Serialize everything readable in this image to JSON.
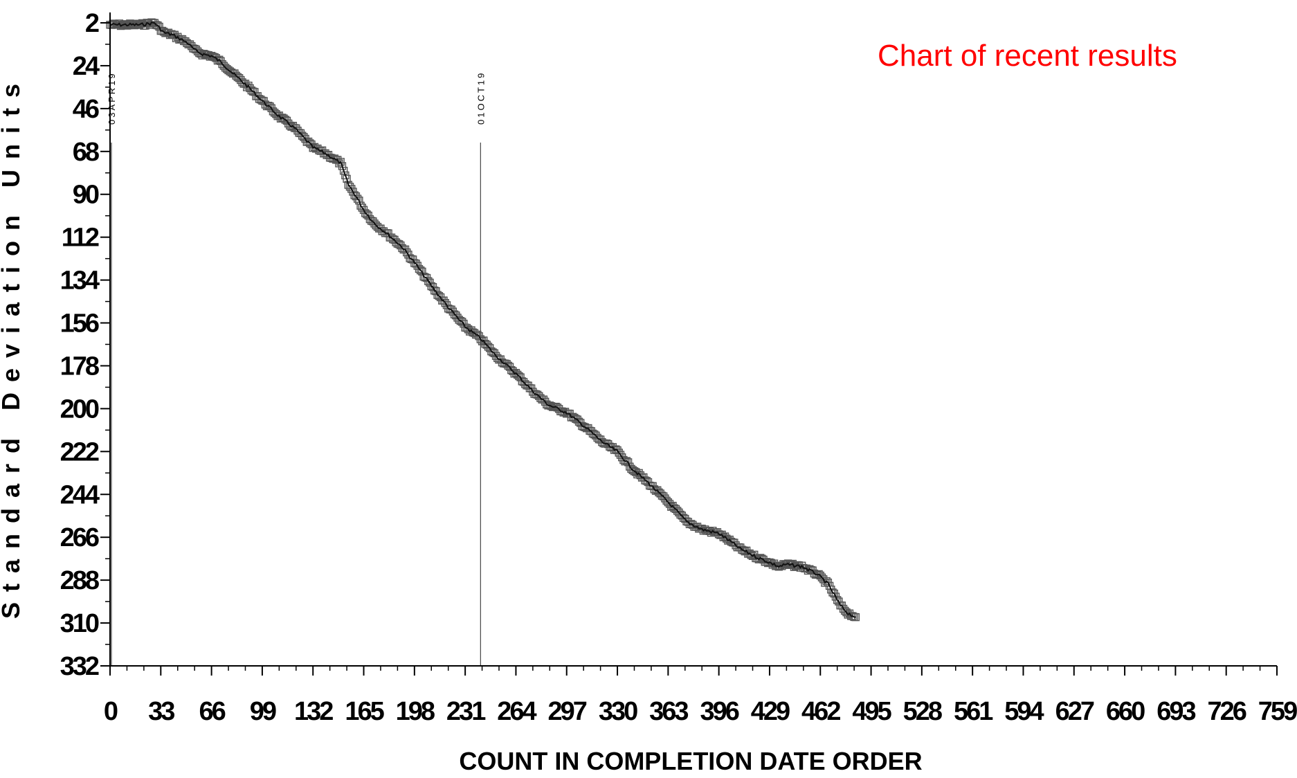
{
  "overlay_text": "Chart of recent results",
  "chart_data": {
    "type": "line",
    "title": "",
    "xlabel": "COUNT IN COMPLETION DATE ORDER",
    "ylabel": "Standard Deviation Units",
    "xlim": [
      0,
      759
    ],
    "ylim": [
      332,
      2
    ],
    "y_axis_inverted": true,
    "x_ticks": [
      0,
      33,
      66,
      99,
      132,
      165,
      198,
      231,
      264,
      297,
      330,
      363,
      396,
      429,
      462,
      495,
      528,
      561,
      594,
      627,
      660,
      693,
      726,
      759
    ],
    "y_ticks": [
      2,
      24,
      46,
      68,
      90,
      112,
      134,
      156,
      178,
      200,
      222,
      244,
      266,
      288,
      310,
      332
    ],
    "reference_lines": [
      {
        "x": 0,
        "label": "03APR19"
      },
      {
        "x": 241,
        "label": "01OCT19"
      }
    ],
    "series": [
      {
        "marker": "square",
        "color": "#555555",
        "x": [
          0,
          10,
          20,
          29,
          35,
          40,
          45,
          50,
          55,
          60,
          66,
          72,
          80,
          90,
          99,
          110,
          120,
          132,
          140,
          150,
          155,
          160,
          165,
          172,
          180,
          190,
          198,
          210,
          220,
          231,
          241,
          250,
          264,
          275,
          285,
          297,
          310,
          320,
          330,
          340,
          350,
          363,
          375,
          385,
          396,
          405,
          410,
          420,
          429,
          435,
          440,
          450,
          460,
          467,
          475,
          480,
          485
        ],
        "y": [
          3,
          3,
          3,
          2,
          7,
          8,
          10,
          12,
          16,
          18,
          19,
          22,
          28,
          35,
          42,
          50,
          56,
          66,
          69,
          74,
          85,
          91,
          98,
          105,
          110,
          117,
          125,
          138,
          148,
          158,
          164,
          172,
          182,
          191,
          198,
          202,
          210,
          217,
          222,
          231,
          238,
          248,
          258,
          262,
          264,
          269,
          272,
          276,
          279,
          281,
          280,
          281,
          285,
          290,
          301,
          305,
          307
        ]
      }
    ]
  }
}
